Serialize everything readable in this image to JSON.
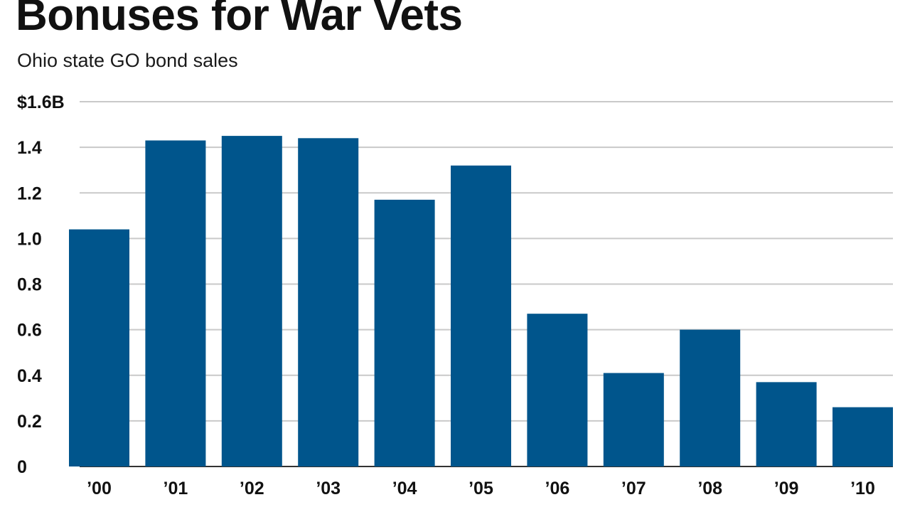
{
  "header": {
    "title": "Bonuses for War Vets",
    "subtitle": "Ohio state GO bond sales"
  },
  "chart_data": {
    "type": "bar",
    "title": "Bonuses for War Vets",
    "subtitle": "Ohio state GO bond sales",
    "xlabel": "",
    "ylabel": "",
    "categories": [
      "’00",
      "’01",
      "’02",
      "’03",
      "’04",
      "’05",
      "’06",
      "’07",
      "’08",
      "’09",
      "’10"
    ],
    "values": [
      1.04,
      1.43,
      1.45,
      1.44,
      1.17,
      1.32,
      0.67,
      0.41,
      0.6,
      0.37,
      0.26
    ],
    "ylim": [
      0,
      1.6
    ],
    "yticks": [
      0,
      0.2,
      0.4,
      0.6,
      0.8,
      1.0,
      1.2,
      1.4,
      1.6
    ],
    "ytick_labels": [
      "0",
      "0.2",
      "0.4",
      "0.6",
      "0.8",
      "1.0",
      "1.2",
      "1.4",
      "$1.6B"
    ],
    "grid": true,
    "colors": {
      "bar": "#00558c",
      "grid": "#c9c9c9",
      "text": "#111111"
    }
  }
}
